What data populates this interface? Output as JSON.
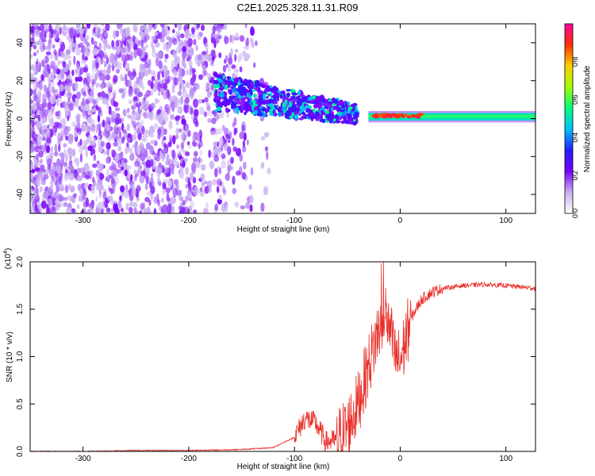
{
  "title": "C2E1.2025.328.11.31.R09",
  "chart_data": [
    {
      "type": "heatmap",
      "title": "C2E1.2025.328.11.31.R09",
      "xlabel": "Height of straight line (km)",
      "ylabel": "Frequency (Hz)",
      "xlim": [
        -350,
        128
      ],
      "ylim": [
        -50,
        50
      ],
      "xticks": [
        -300,
        -200,
        -100,
        0,
        100
      ],
      "yticks": [
        -40,
        -20,
        0,
        20,
        40
      ],
      "colorbar": {
        "label": "Normalized spectral amplitude",
        "range": [
          0.0,
          1.0
        ],
        "ticks": [
          "0.0",
          "0.2",
          "0.4",
          "0.6",
          "0.8"
        ],
        "colormap": [
          "#ffffff",
          "#c8b0f0",
          "#7a00ff",
          "#2020ff",
          "#00c0ff",
          "#00ff80",
          "#a0ff00",
          "#ffd000",
          "#ff3000",
          "#ff00a0"
        ]
      },
      "regions": [
        {
          "desc": "scattered noise",
          "x": [
            -350,
            -200
          ],
          "y": [
            -50,
            50
          ],
          "amplitude": 0.15
        },
        {
          "desc": "noise fading",
          "x": [
            -200,
            -130
          ],
          "y": [
            -50,
            50
          ],
          "amplitude": 0.1
        },
        {
          "desc": "signal band emerging",
          "x": [
            -170,
            -40
          ],
          "y": [
            -10,
            20
          ],
          "amplitude": 0.35
        },
        {
          "desc": "narrow carrier line",
          "x": [
            -30,
            128
          ],
          "y": [
            -2,
            4
          ],
          "amplitude": 0.9
        }
      ]
    },
    {
      "type": "line",
      "xlabel": "Height of straight line (km)",
      "ylabel": "SNR (10 * v/v)",
      "y_multiplier": "(x10",
      "y_multiplier_exp": "4",
      "xlim": [
        -350,
        128
      ],
      "ylim": [
        0.0,
        2.0
      ],
      "xticks": [
        -300,
        -200,
        -100,
        0,
        100
      ],
      "yticks": [
        "0.0",
        "0.5",
        "1.0",
        "1.5",
        "2.0"
      ],
      "line_color": "#e8302a",
      "series": [
        {
          "x": [
            -350,
            -300,
            -250,
            -200,
            -150,
            -120,
            -100,
            -90,
            -80,
            -70,
            -60,
            -50,
            -40,
            -30,
            -20,
            -15,
            -10,
            -5,
            0,
            10,
            20,
            30,
            40,
            60,
            80,
            100,
            128
          ],
          "y": [
            0.0,
            0.0,
            0.01,
            0.01,
            0.02,
            0.04,
            0.15,
            0.35,
            0.3,
            0.1,
            0.12,
            0.25,
            0.5,
            0.9,
            1.3,
            1.5,
            1.3,
            1.0,
            0.95,
            1.4,
            1.6,
            1.68,
            1.72,
            1.75,
            1.76,
            1.75,
            1.72
          ]
        }
      ]
    }
  ]
}
